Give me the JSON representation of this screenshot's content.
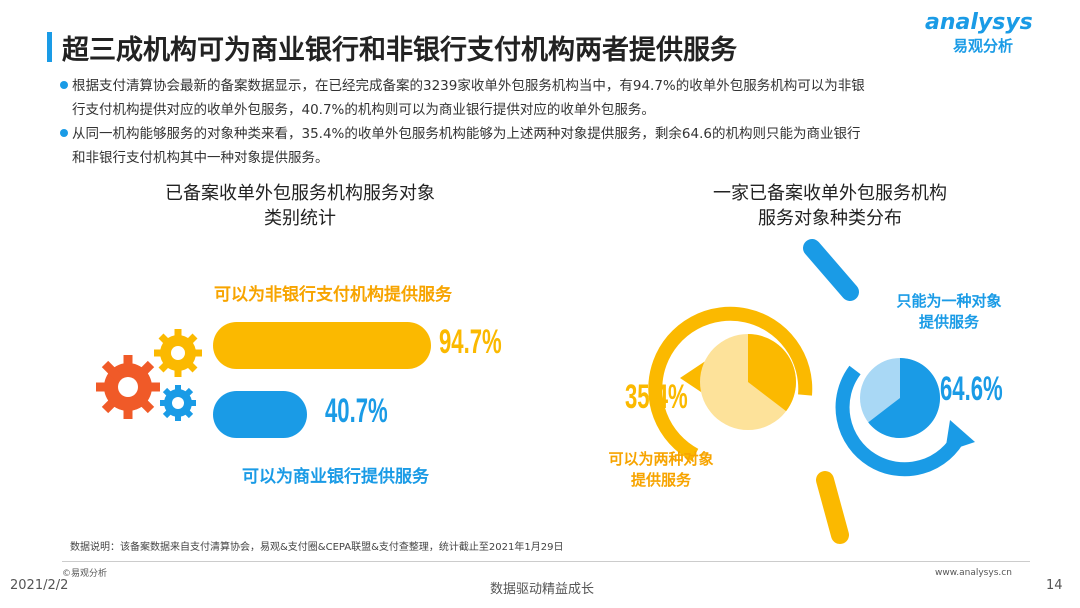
{
  "header": {
    "title": "超三成机构可为商业银行和非银行支付机构两者提供服务",
    "logo_en": "analysys",
    "logo_cn": "易观分析"
  },
  "bullets": [
    {
      "line1": "根据支付清算协会最新的备案数据显示，在已经完成备案的3239家收单外包服务机构当中，有94.7%的收单外包服务机构可以为非银",
      "line2": "行支付机构提供对应的收单外包服务，40.7%的机构则可以为商业银行提供对应的收单外包服务。"
    },
    {
      "line1": "从同一机构能够服务的对象种类来看，35.4%的收单外包服务机构能够为上述两种对象提供服务，剩余64.6的机构则只能为商业银行",
      "line2": "和非银行支付机构其中一种对象提供服务。"
    }
  ],
  "chart_data": [
    {
      "type": "bar",
      "orientation": "horizontal",
      "title_line1": "已备案收单外包服务机构服务对象",
      "title_line2": "类别统计",
      "categories": [
        "可以为非银行支付机构提供服务",
        "可以为商业银行提供服务"
      ],
      "values": [
        94.7,
        40.7
      ],
      "value_labels": [
        "94.7%",
        "40.7%"
      ],
      "xlim": [
        0,
        100
      ],
      "colors": [
        "#fbb900",
        "#1a9be6"
      ]
    },
    {
      "type": "pie",
      "title_line1": "一家已备案收单外包服务机构",
      "title_line2": "服务对象种类分布",
      "slices": [
        {
          "label_line1": "可以为两种对象",
          "label_line2": "提供服务",
          "value": 35.4,
          "value_label": "35.4%",
          "color": "#fbb900"
        },
        {
          "label_line1": "只能为一种对象",
          "label_line2": "提供服务",
          "value": 64.6,
          "value_label": "64.6%",
          "color": "#1a9be6"
        }
      ]
    }
  ],
  "footer": {
    "note": "数据说明：该备案数据来自支付清算协会，易观&支付圈&CEPA联盟&支付查整理，统计截止至2021年1月29日",
    "copyright": "©易观分析",
    "website": "www.analysys.cn",
    "date": "2021/2/2",
    "slogan": "数据驱动精益成长",
    "page": "14"
  }
}
